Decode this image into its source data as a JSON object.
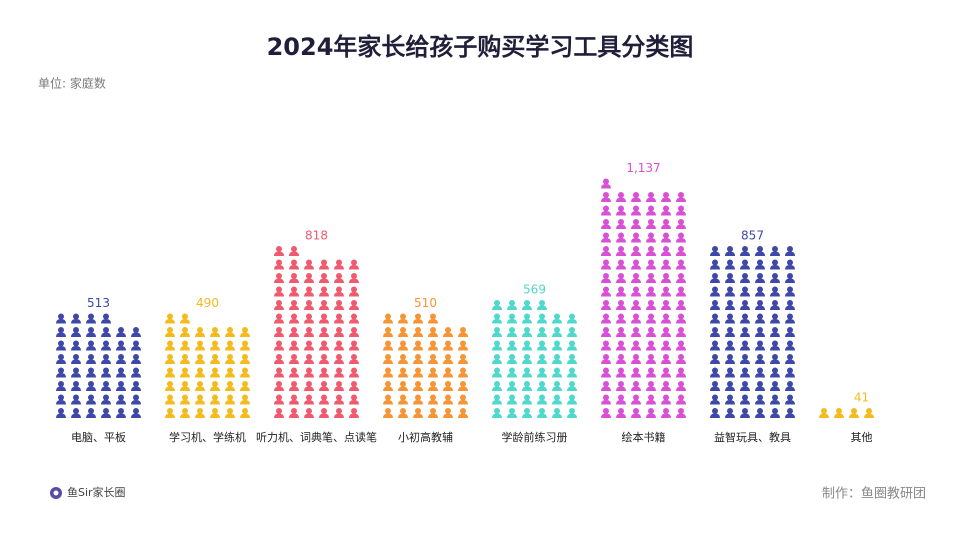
{
  "chart_data": {
    "type": "pictograph",
    "title": "2024年家长给孩子购买学习工具分类图",
    "subtitle": "单位: 家庭数",
    "categories": [
      "电脑、平板",
      "学习机、学练机",
      "听力机、词典笔、点读笔",
      "小初高教辅",
      "学龄前练习册",
      "绘本书籍",
      "益智玩具、教具",
      "其他"
    ],
    "values": [
      513,
      490,
      818,
      510,
      569,
      1137,
      857,
      41
    ],
    "value_labels": [
      "513",
      "490",
      "818",
      "510",
      "569",
      "1,137",
      "857",
      "41"
    ],
    "colors": [
      "#3d48a8",
      "#f4bb1e",
      "#f05a6e",
      "#f59535",
      "#4fd8cc",
      "#d94fd6",
      "#3d48a8",
      "#f4bb1e"
    ]
  },
  "footer": {
    "brand": "鱼Sir家长圈",
    "credit": "制作：鱼圈教研团"
  }
}
